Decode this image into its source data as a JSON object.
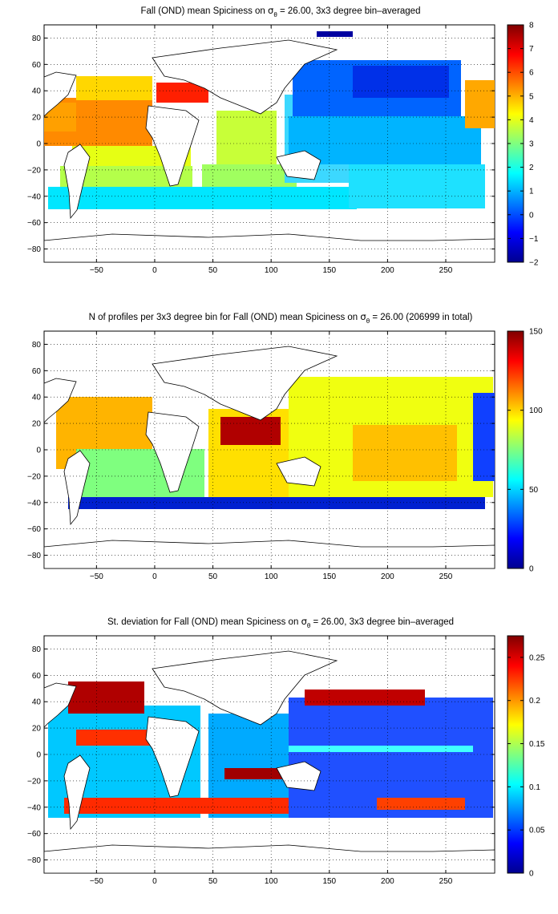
{
  "chart_data": [
    {
      "type": "heatmap",
      "title": {
        "before": "Fall (OND) mean Spiciness on ",
        "sigma": "σ",
        "sub": "θ",
        "after": " = 26.00, 3x3 degree bin–averaged"
      },
      "xlim": [
        -95,
        292
      ],
      "ylim": [
        -90,
        90
      ],
      "xticks": [
        -50,
        0,
        50,
        100,
        150,
        200,
        250
      ],
      "yticks": [
        80,
        60,
        40,
        20,
        0,
        -20,
        -40,
        -60,
        -80
      ],
      "grid": true,
      "colormap": "jet",
      "clim": [
        -2,
        8
      ],
      "colorbar_ticks": [
        8,
        7,
        6,
        5,
        4,
        3,
        2,
        1,
        0,
        -1,
        -2
      ]
    },
    {
      "type": "heatmap",
      "title": {
        "before": "N of profiles per 3x3 degree bin for Fall (OND) mean Spiciness on ",
        "sigma": "σ",
        "sub": "θ",
        "after": " = 26.00 (206999 in total)"
      },
      "xlim": [
        -95,
        292
      ],
      "ylim": [
        -90,
        90
      ],
      "xticks": [
        -50,
        0,
        50,
        100,
        150,
        200,
        250
      ],
      "yticks": [
        80,
        60,
        40,
        20,
        0,
        -20,
        -40,
        -60,
        -80
      ],
      "grid": true,
      "colormap": "jet",
      "clim": [
        0,
        150
      ],
      "colorbar_ticks": [
        150,
        100,
        50,
        0
      ]
    },
    {
      "type": "heatmap",
      "title": {
        "before": "St. deviation for Fall (OND) mean Spiciness on ",
        "sigma": "σ",
        "sub": "θ",
        "after": " = 26.00, 3x3 degree bin–averaged"
      },
      "xlim": [
        -95,
        292
      ],
      "ylim": [
        -90,
        90
      ],
      "xticks": [
        -50,
        0,
        50,
        100,
        150,
        200,
        250
      ],
      "yticks": [
        80,
        60,
        40,
        20,
        0,
        -20,
        -40,
        -60,
        -80
      ],
      "grid": true,
      "colormap": "jet",
      "clim": [
        0,
        0.275
      ],
      "colorbar_ticks": [
        0.25,
        0.2,
        0.15,
        0.1,
        0.05,
        0
      ]
    }
  ]
}
